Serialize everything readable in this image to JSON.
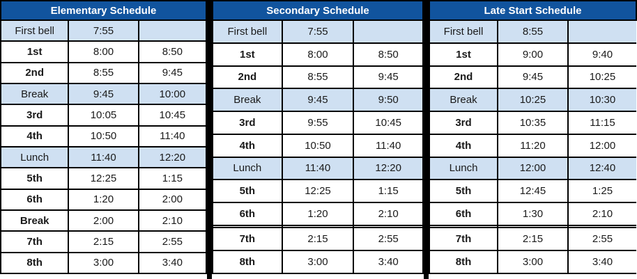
{
  "colors": {
    "header_bg": "#11549e",
    "header_text": "#ffffff",
    "highlight_row_bg": "#cfe0f2",
    "row_bg": "#ffffff",
    "border": "#000000",
    "cell_text": "#1a1a1a"
  },
  "tables": [
    {
      "title": "Elementary Schedule",
      "rows": [
        {
          "label": "First bell",
          "start": "7:55",
          "end": "",
          "type": "info"
        },
        {
          "label": "1st",
          "start": "8:00",
          "end": "8:50",
          "type": "period"
        },
        {
          "label": "2nd",
          "start": "8:55",
          "end": "9:45",
          "type": "period"
        },
        {
          "label": "Break",
          "start": "9:45",
          "end": "10:00",
          "type": "info"
        },
        {
          "label": "3rd",
          "start": "10:05",
          "end": "10:45",
          "type": "period"
        },
        {
          "label": "4th",
          "start": "10:50",
          "end": "11:40",
          "type": "period"
        },
        {
          "label": "Lunch",
          "start": "11:40",
          "end": "12:20",
          "type": "info"
        },
        {
          "label": "5th",
          "start": "12:25",
          "end": "1:15",
          "type": "period"
        },
        {
          "label": "6th",
          "start": "1:20",
          "end": "2:00",
          "type": "period"
        },
        {
          "label": "Break",
          "start": "2:00",
          "end": "2:10",
          "type": "period"
        },
        {
          "label": "7th",
          "start": "2:15",
          "end": "2:55",
          "type": "period"
        },
        {
          "label": "8th",
          "start": "3:00",
          "end": "3:40",
          "type": "period"
        }
      ]
    },
    {
      "title": "Secondary Schedule",
      "rows": [
        {
          "label": "First bell",
          "start": "7:55",
          "end": "",
          "type": "info"
        },
        {
          "label": "1st",
          "start": "8:00",
          "end": "8:50",
          "type": "period"
        },
        {
          "label": "2nd",
          "start": "8:55",
          "end": "9:45",
          "type": "period"
        },
        {
          "label": "Break",
          "start": "9:45",
          "end": "9:50",
          "type": "info"
        },
        {
          "label": "3rd",
          "start": "9:55",
          "end": "10:45",
          "type": "period"
        },
        {
          "label": "4th",
          "start": "10:50",
          "end": "11:40",
          "type": "period"
        },
        {
          "label": "Lunch",
          "start": "11:40",
          "end": "12:20",
          "type": "info"
        },
        {
          "label": "5th",
          "start": "12:25",
          "end": "1:15",
          "type": "period"
        },
        {
          "label": "6th",
          "start": "1:20",
          "end": "2:10",
          "type": "period"
        },
        {
          "label": "",
          "start": "",
          "end": "",
          "type": "empty"
        },
        {
          "label": "7th",
          "start": "2:15",
          "end": "2:55",
          "type": "period"
        },
        {
          "label": "8th",
          "start": "3:00",
          "end": "3:40",
          "type": "period"
        }
      ]
    },
    {
      "title": "Late Start Schedule",
      "rows": [
        {
          "label": "First bell",
          "start": "8:55",
          "end": "",
          "type": "info"
        },
        {
          "label": "1st",
          "start": "9:00",
          "end": "9:40",
          "type": "period"
        },
        {
          "label": "2nd",
          "start": "9:45",
          "end": "10:25",
          "type": "period"
        },
        {
          "label": "Break",
          "start": "10:25",
          "end": "10:30",
          "type": "info"
        },
        {
          "label": "3rd",
          "start": "10:35",
          "end": "11:15",
          "type": "period"
        },
        {
          "label": "4th",
          "start": "11:20",
          "end": "12:00",
          "type": "period"
        },
        {
          "label": "Lunch",
          "start": "12:00",
          "end": "12:40",
          "type": "info"
        },
        {
          "label": "5th",
          "start": "12:45",
          "end": "1:25",
          "type": "period"
        },
        {
          "label": "6th",
          "start": "1:30",
          "end": "2:10",
          "type": "period"
        },
        {
          "label": "",
          "start": "",
          "end": "",
          "type": "empty"
        },
        {
          "label": "7th",
          "start": "2:15",
          "end": "2:55",
          "type": "period"
        },
        {
          "label": "8th",
          "start": "3:00",
          "end": "3:40",
          "type": "period"
        }
      ]
    }
  ]
}
